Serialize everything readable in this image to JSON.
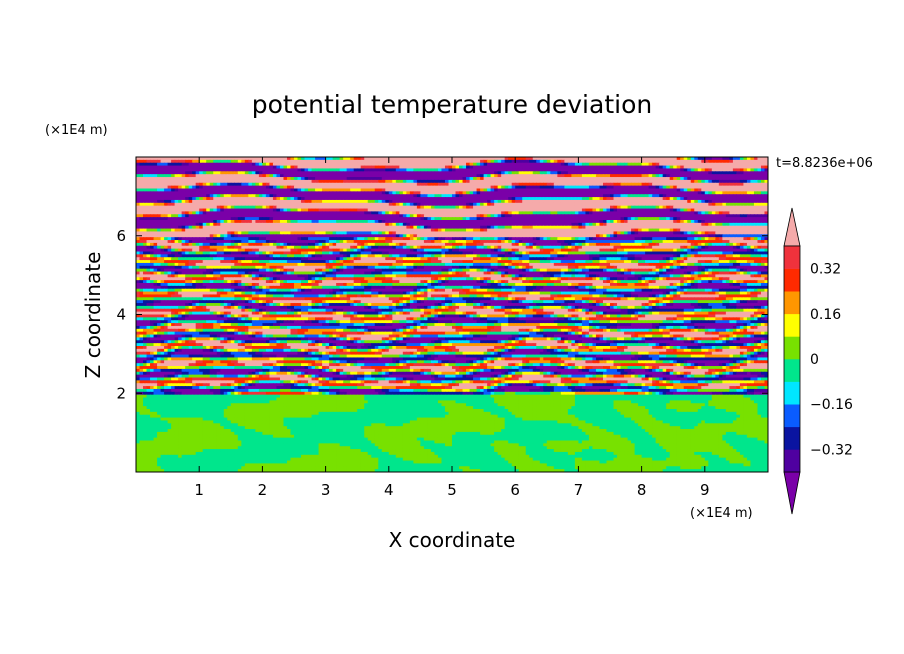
{
  "chart_data": {
    "type": "heatmap",
    "title": "potential temperature deviation",
    "xlabel": "X coordinate",
    "ylabel": "Z coordinate",
    "x_unit": "(×1E4 m)",
    "y_unit": "(×1E4 m)",
    "time_label": "t=8.8236e+06",
    "xlim": [
      0,
      10
    ],
    "ylim": [
      0,
      8
    ],
    "x_ticks": [
      1,
      2,
      3,
      4,
      5,
      6,
      7,
      8,
      9
    ],
    "y_ticks": [
      2,
      4,
      6
    ],
    "colorbar": {
      "levels": [
        -0.4,
        -0.32,
        -0.24,
        -0.16,
        -0.08,
        0,
        0.08,
        0.16,
        0.24,
        0.32,
        0.4
      ],
      "tick_values": [
        0.32,
        0.16,
        0,
        -0.16,
        -0.32
      ],
      "tick_labels": [
        "0.32",
        "0.16",
        "0",
        "−0.16",
        "−0.32"
      ],
      "colors": [
        "#7a00a8",
        "#4f00a0",
        "#0a14a0",
        "#0a5cff",
        "#00e6ff",
        "#00e68c",
        "#78e100",
        "#ffff00",
        "#ff9600",
        "#ff2a00",
        "#f0323c",
        "#f5aaaa"
      ],
      "extend": "both"
    },
    "layers": [
      {
        "z_min": 0,
        "z_max": 2,
        "pattern": "near-zero mix of -0.08..0.08 (green)"
      },
      {
        "z_min": 2,
        "z_max": 6,
        "pattern": "turbulent horizontal bands spanning -0.4..0.4"
      },
      {
        "z_min": 6,
        "z_max": 8,
        "pattern": "alternating bands of >0.4 (pink) and <-0.4 (purple)"
      }
    ]
  }
}
